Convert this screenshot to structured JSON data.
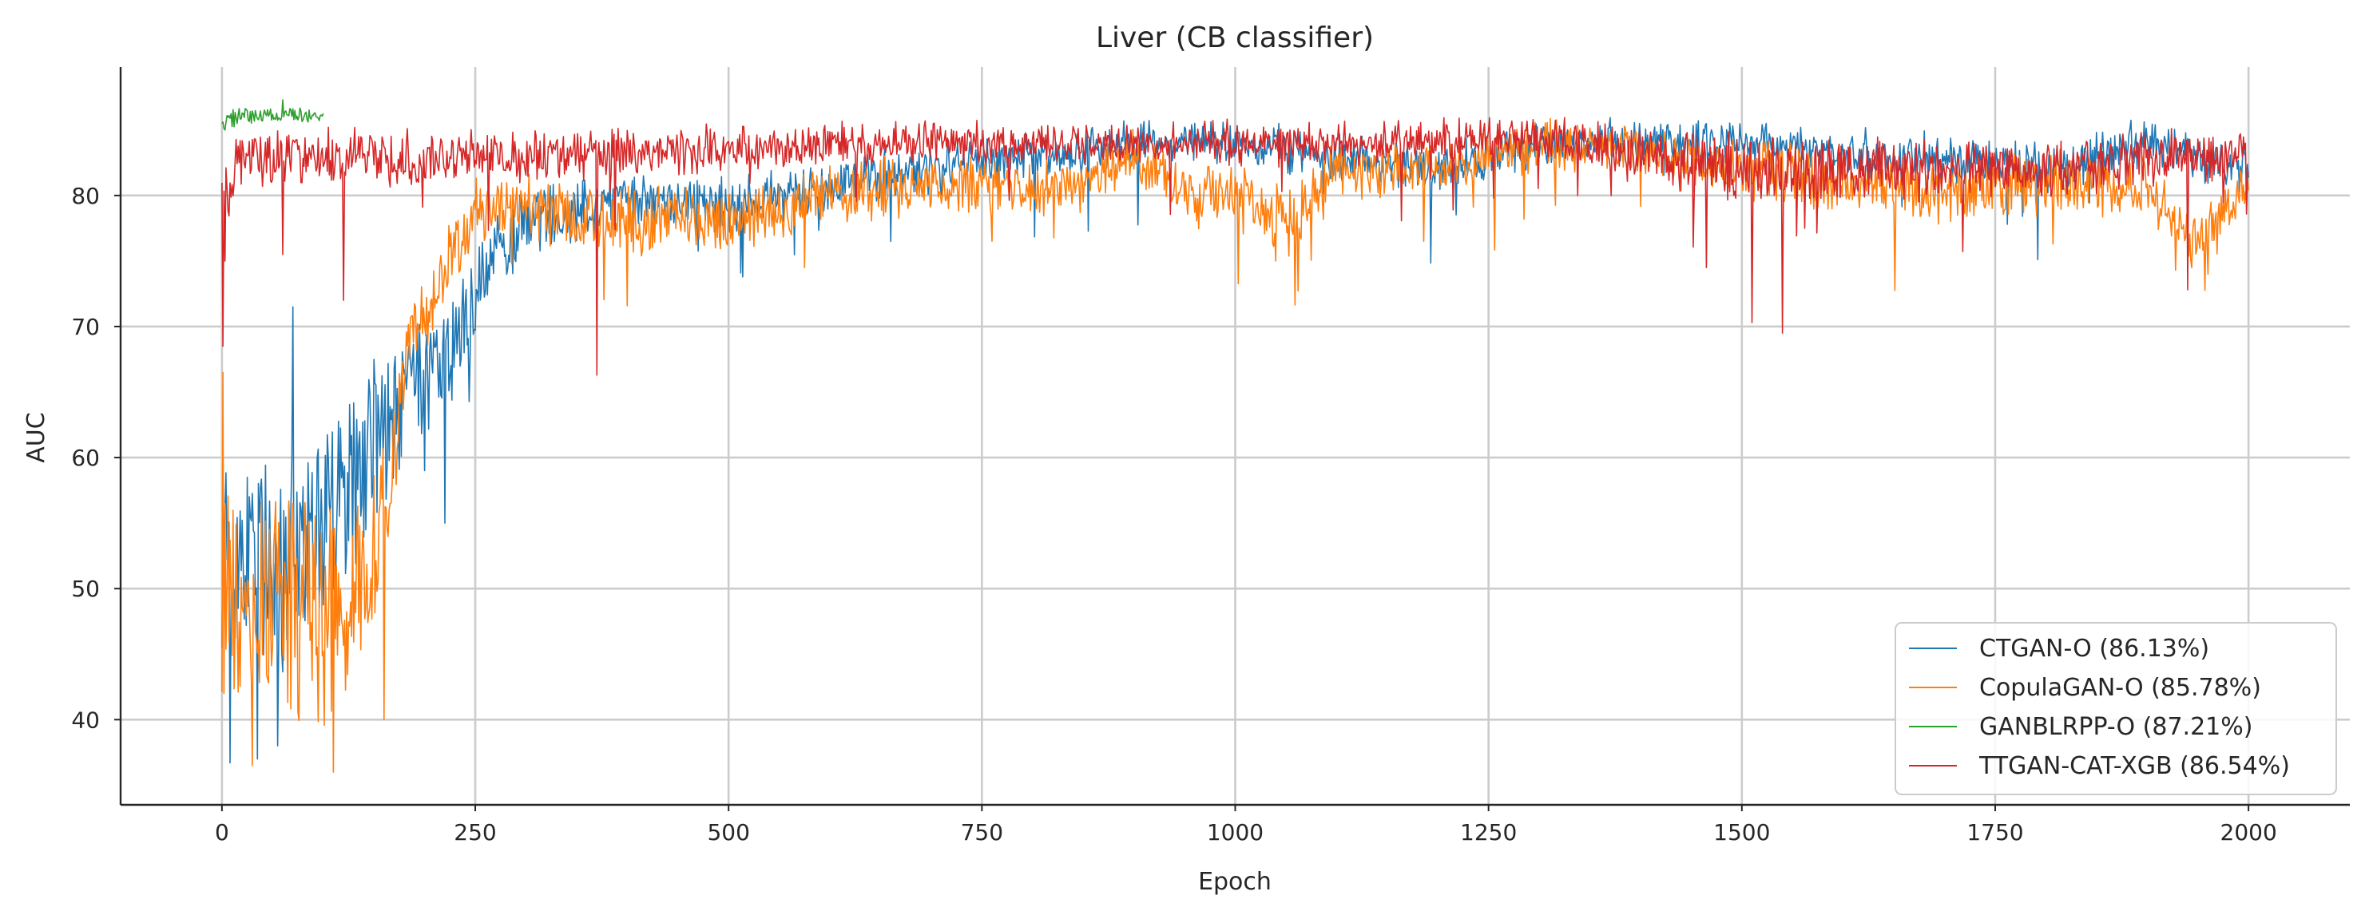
{
  "chart_data": {
    "type": "line",
    "title": "Liver (CB classifier)",
    "xlabel": "Epoch",
    "ylabel": "AUC",
    "xlim": [
      -100,
      2100
    ],
    "ylim": [
      33.5,
      89.8
    ],
    "xticks": [
      0,
      250,
      500,
      750,
      1000,
      1250,
      1500,
      1750,
      2000
    ],
    "yticks": [
      40,
      50,
      60,
      70,
      80
    ],
    "grid": true,
    "legend_position": "lower-right",
    "series": [
      {
        "name": "CTGAN-O (86.13%)",
        "color": "#1f77b4",
        "x_range": [
          0,
          2000
        ],
        "noise": 1.6,
        "profile": [
          [
            0,
            53,
            7
          ],
          [
            60,
            52,
            8
          ],
          [
            120,
            57,
            7
          ],
          [
            180,
            64,
            5
          ],
          [
            220,
            67,
            4
          ],
          [
            260,
            74,
            2.8
          ],
          [
            300,
            78,
            2
          ],
          [
            400,
            80,
            1.8
          ],
          [
            500,
            79,
            1.6
          ],
          [
            600,
            81,
            1.6
          ],
          [
            700,
            82,
            1.6
          ],
          [
            800,
            83,
            1.4
          ],
          [
            900,
            84,
            1.2
          ],
          [
            1000,
            84,
            1.2
          ],
          [
            1100,
            83,
            1.2
          ],
          [
            1200,
            82,
            1.2
          ],
          [
            1300,
            84,
            1.2
          ],
          [
            1400,
            84,
            1.2
          ],
          [
            1500,
            84,
            1.2
          ],
          [
            1600,
            83,
            1.4
          ],
          [
            1700,
            83,
            1.4
          ],
          [
            1800,
            82,
            1.6
          ],
          [
            1900,
            84,
            1.4
          ],
          [
            2000,
            82,
            1.2
          ]
        ],
        "dips": [
          [
            8,
            36.7
          ],
          [
            35,
            37
          ],
          [
            55,
            38
          ],
          [
            70,
            71.5
          ],
          [
            150,
            67.5
          ],
          [
            200,
            59
          ],
          [
            220,
            55
          ],
          [
            660,
            76.5
          ],
          [
            1762,
            77.8
          ]
        ]
      },
      {
        "name": "CopulaGAN-O (85.78%)",
        "color": "#ff7f0e",
        "x_range": [
          0,
          2000
        ],
        "noise": 1.8,
        "profile": [
          [
            0,
            50,
            9
          ],
          [
            50,
            49,
            8
          ],
          [
            100,
            48,
            8
          ],
          [
            150,
            52,
            6
          ],
          [
            190,
            70,
            3
          ],
          [
            250,
            79,
            2
          ],
          [
            300,
            79,
            2
          ],
          [
            400,
            78,
            2
          ],
          [
            500,
            78,
            1.8
          ],
          [
            600,
            80,
            1.8
          ],
          [
            700,
            81,
            1.6
          ],
          [
            800,
            80,
            1.6
          ],
          [
            900,
            83,
            1.5
          ],
          [
            950,
            80,
            2
          ],
          [
            1000,
            80,
            2
          ],
          [
            1050,
            78,
            2
          ],
          [
            1100,
            82,
            1.6
          ],
          [
            1200,
            82,
            1.4
          ],
          [
            1300,
            84,
            1.4
          ],
          [
            1400,
            83,
            1.4
          ],
          [
            1500,
            82,
            1.8
          ],
          [
            1600,
            81,
            1.8
          ],
          [
            1700,
            80,
            1.8
          ],
          [
            1800,
            81,
            1.8
          ],
          [
            1900,
            81,
            1.8
          ],
          [
            1950,
            76,
            1.8
          ],
          [
            2000,
            81,
            1.4
          ]
        ],
        "dips": [
          [
            1,
            66.5
          ],
          [
            2,
            42
          ],
          [
            30,
            36.5
          ],
          [
            110,
            36
          ],
          [
            160,
            40
          ],
          [
            575,
            74.5
          ],
          [
            1040,
            75
          ],
          [
            1960,
            74
          ]
        ]
      },
      {
        "name": "GANBLRPP-O (87.21%)",
        "color": "#2ca02c",
        "x_range": [
          0,
          100
        ],
        "noise": 0.35,
        "profile": [
          [
            0,
            85.8,
            0.6
          ],
          [
            50,
            86.2,
            0.5
          ],
          [
            100,
            86.0,
            0.5
          ]
        ],
        "dips": [
          [
            3,
            85
          ],
          [
            60,
            87.3
          ]
        ]
      },
      {
        "name": "TTGAN-CAT-XGB (86.54%)",
        "color": "#d62728",
        "x_range": [
          0,
          2000
        ],
        "noise": 1.4,
        "profile": [
          [
            0,
            80,
            4
          ],
          [
            15,
            83,
            2
          ],
          [
            100,
            83,
            1.8
          ],
          [
            300,
            83,
            1.6
          ],
          [
            500,
            83.5,
            1.4
          ],
          [
            700,
            84,
            1.2
          ],
          [
            900,
            84,
            1.2
          ],
          [
            1100,
            84,
            1.2
          ],
          [
            1300,
            84.5,
            1.2
          ],
          [
            1400,
            83,
            1.8
          ],
          [
            1500,
            82,
            2.2
          ],
          [
            1600,
            82,
            2
          ],
          [
            1700,
            82,
            1.8
          ],
          [
            1800,
            82,
            1.8
          ],
          [
            1900,
            83,
            1.8
          ],
          [
            2000,
            83,
            1.4
          ]
        ],
        "dips": [
          [
            1,
            68.5
          ],
          [
            3,
            75
          ],
          [
            60,
            75.5
          ],
          [
            120,
            72
          ],
          [
            370,
            66.3
          ],
          [
            1510,
            70.3
          ],
          [
            1540,
            69.5
          ],
          [
            1465,
            74.5
          ],
          [
            1940,
            72.8
          ]
        ]
      }
    ]
  }
}
